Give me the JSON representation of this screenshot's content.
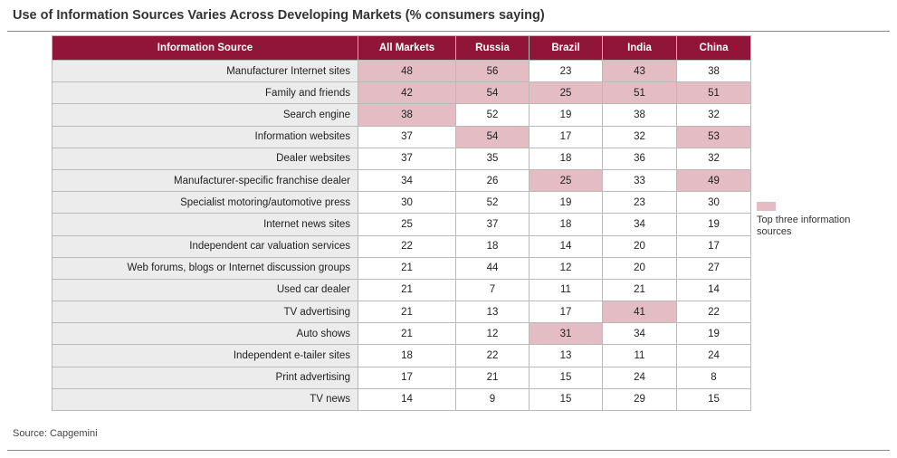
{
  "title": "Use of Information Sources Varies Across Developing Markets (% consumers saying)",
  "source": "Source: Capgemini",
  "legend": {
    "label": "Top three information sources",
    "color": "#e3bcc4"
  },
  "colors": {
    "header": "#8f1638",
    "highlight": "#e3bcc4",
    "label_bg": "#ececec"
  },
  "chart_data": {
    "type": "table",
    "title": "Use of Information Sources Varies Across Developing Markets (% consumers saying)",
    "columns": [
      "Information Source",
      "All Markets",
      "Russia",
      "Brazil",
      "India",
      "China"
    ],
    "rows": [
      {
        "source": "Manufacturer Internet sites",
        "values": [
          48,
          56,
          23,
          43,
          38
        ],
        "highlight": [
          true,
          true,
          false,
          true,
          false
        ]
      },
      {
        "source": "Family and friends",
        "values": [
          42,
          54,
          25,
          51,
          51
        ],
        "highlight": [
          true,
          true,
          true,
          true,
          true
        ]
      },
      {
        "source": "Search engine",
        "values": [
          38,
          52,
          19,
          38,
          32
        ],
        "highlight": [
          true,
          false,
          false,
          false,
          false
        ]
      },
      {
        "source": "Information websites",
        "values": [
          37,
          54,
          17,
          32,
          53
        ],
        "highlight": [
          false,
          true,
          false,
          false,
          true
        ]
      },
      {
        "source": "Dealer websites",
        "values": [
          37,
          35,
          18,
          36,
          32
        ],
        "highlight": [
          false,
          false,
          false,
          false,
          false
        ]
      },
      {
        "source": "Manufacturer-specific franchise dealer",
        "values": [
          34,
          26,
          25,
          33,
          49
        ],
        "highlight": [
          false,
          false,
          true,
          false,
          true
        ]
      },
      {
        "source": "Specialist motoring/automotive press",
        "values": [
          30,
          52,
          19,
          23,
          30
        ],
        "highlight": [
          false,
          false,
          false,
          false,
          false
        ]
      },
      {
        "source": "Internet news sites",
        "values": [
          25,
          37,
          18,
          34,
          19
        ],
        "highlight": [
          false,
          false,
          false,
          false,
          false
        ]
      },
      {
        "source": "Independent car valuation services",
        "values": [
          22,
          18,
          14,
          20,
          17
        ],
        "highlight": [
          false,
          false,
          false,
          false,
          false
        ]
      },
      {
        "source": "Web forums, blogs or Internet discussion groups",
        "values": [
          21,
          44,
          12,
          20,
          27
        ],
        "highlight": [
          false,
          false,
          false,
          false,
          false
        ]
      },
      {
        "source": "Used car dealer",
        "values": [
          21,
          7,
          11,
          21,
          14
        ],
        "highlight": [
          false,
          false,
          false,
          false,
          false
        ]
      },
      {
        "source": "TV advertising",
        "values": [
          21,
          13,
          17,
          41,
          22
        ],
        "highlight": [
          false,
          false,
          false,
          true,
          false
        ]
      },
      {
        "source": "Auto shows",
        "values": [
          21,
          12,
          31,
          34,
          19
        ],
        "highlight": [
          false,
          false,
          true,
          false,
          false
        ]
      },
      {
        "source": "Independent e-tailer sites",
        "values": [
          18,
          22,
          13,
          11,
          24
        ],
        "highlight": [
          false,
          false,
          false,
          false,
          false
        ]
      },
      {
        "source": "Print advertising",
        "values": [
          17,
          21,
          15,
          24,
          8
        ],
        "highlight": [
          false,
          false,
          false,
          false,
          false
        ]
      },
      {
        "source": "TV news",
        "values": [
          14,
          9,
          15,
          29,
          15
        ],
        "highlight": [
          false,
          false,
          false,
          false,
          false
        ]
      }
    ]
  }
}
